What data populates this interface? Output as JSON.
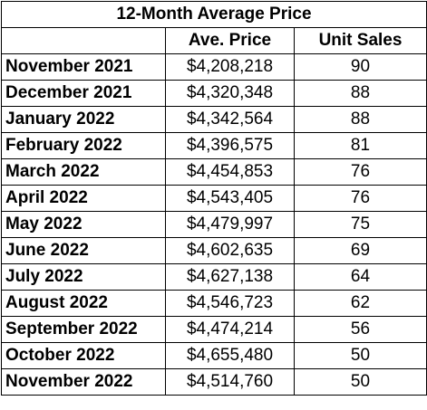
{
  "title": "12-Month Average Price",
  "headers": {
    "month": "",
    "price": "Ave. Price",
    "units": "Unit Sales"
  },
  "rows": [
    {
      "month": "November 2021",
      "price": "$4,208,218",
      "units": "90"
    },
    {
      "month": "December 2021",
      "price": "$4,320,348",
      "units": "88"
    },
    {
      "month": "January 2022",
      "price": "$4,342,564",
      "units": "88"
    },
    {
      "month": "February 2022",
      "price": "$4,396,575",
      "units": "81"
    },
    {
      "month": "March 2022",
      "price": "$4,454,853",
      "units": "76"
    },
    {
      "month": "April 2022",
      "price": "$4,543,405",
      "units": "76"
    },
    {
      "month": "May 2022",
      "price": "$4,479,997",
      "units": "75"
    },
    {
      "month": "June 2022",
      "price": "$4,602,635",
      "units": "69"
    },
    {
      "month": "July 2022",
      "price": "$4,627,138",
      "units": "64"
    },
    {
      "month": "August 2022",
      "price": "$4,546,723",
      "units": "62"
    },
    {
      "month": "September 2022",
      "price": "$4,474,214",
      "units": "56"
    },
    {
      "month": "October 2022",
      "price": "$4,655,480",
      "units": "50"
    },
    {
      "month": "November 2022",
      "price": "$4,514,760",
      "units": "50"
    }
  ]
}
